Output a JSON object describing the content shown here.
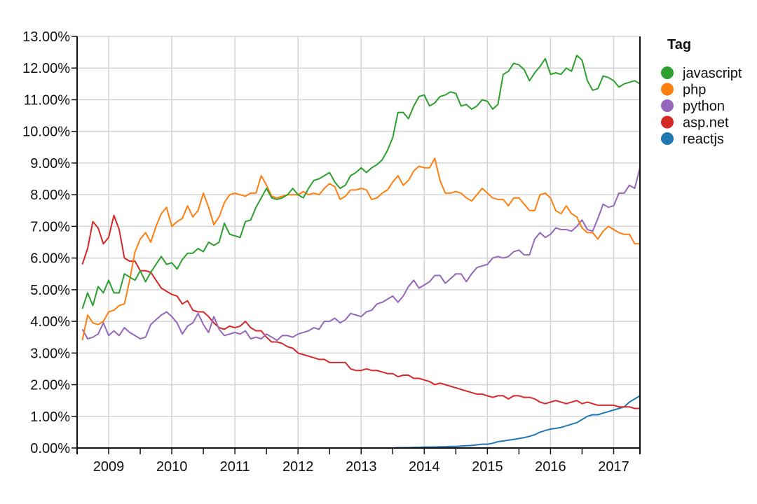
{
  "chart_data": {
    "type": "line",
    "title": "",
    "xlabel": "",
    "ylabel": "",
    "x_ticks": [
      "2009",
      "2010",
      "2011",
      "2012",
      "2013",
      "2014",
      "2015",
      "2016",
      "2017"
    ],
    "y_ticks": [
      "0.00%",
      "1.00%",
      "2.00%",
      "3.00%",
      "4.00%",
      "5.00%",
      "6.00%",
      "7.00%",
      "8.00%",
      "9.00%",
      "10.00%",
      "11.00%",
      "12.00%",
      "13.00%"
    ],
    "xlim": [
      "2008-07",
      "2017-06"
    ],
    "ylim": [
      0,
      13
    ],
    "y_unit": "%",
    "grid": true,
    "legend": {
      "title": "Tag",
      "position": "right"
    },
    "x": [
      "2008-08",
      "2008-09",
      "2008-10",
      "2008-11",
      "2008-12",
      "2009-01",
      "2009-02",
      "2009-03",
      "2009-04",
      "2009-05",
      "2009-06",
      "2009-07",
      "2009-08",
      "2009-09",
      "2009-10",
      "2009-11",
      "2009-12",
      "2010-01",
      "2010-02",
      "2010-03",
      "2010-04",
      "2010-05",
      "2010-06",
      "2010-07",
      "2010-08",
      "2010-09",
      "2010-10",
      "2010-11",
      "2010-12",
      "2011-01",
      "2011-02",
      "2011-03",
      "2011-04",
      "2011-05",
      "2011-06",
      "2011-07",
      "2011-08",
      "2011-09",
      "2011-10",
      "2011-11",
      "2011-12",
      "2012-01",
      "2012-02",
      "2012-03",
      "2012-04",
      "2012-05",
      "2012-06",
      "2012-07",
      "2012-08",
      "2012-09",
      "2012-10",
      "2012-11",
      "2012-12",
      "2013-01",
      "2013-02",
      "2013-03",
      "2013-04",
      "2013-05",
      "2013-06",
      "2013-07",
      "2013-08",
      "2013-09",
      "2013-10",
      "2013-11",
      "2013-12",
      "2014-01",
      "2014-02",
      "2014-03",
      "2014-04",
      "2014-05",
      "2014-06",
      "2014-07",
      "2014-08",
      "2014-09",
      "2014-10",
      "2014-11",
      "2014-12",
      "2015-01",
      "2015-02",
      "2015-03",
      "2015-04",
      "2015-05",
      "2015-06",
      "2015-07",
      "2015-08",
      "2015-09",
      "2015-10",
      "2015-11",
      "2015-12",
      "2016-01",
      "2016-02",
      "2016-03",
      "2016-04",
      "2016-05",
      "2016-06",
      "2016-07",
      "2016-08",
      "2016-09",
      "2016-10",
      "2016-11",
      "2016-12",
      "2017-01",
      "2017-02",
      "2017-03",
      "2017-04",
      "2017-05",
      "2017-06"
    ],
    "series": [
      {
        "name": "javascript",
        "color": "#2ca02c",
        "values": [
          4.4,
          4.9,
          4.5,
          5.1,
          4.9,
          5.3,
          4.9,
          4.9,
          5.5,
          5.4,
          5.3,
          5.6,
          5.25,
          5.55,
          5.8,
          6.05,
          5.8,
          5.85,
          5.65,
          5.95,
          6.15,
          6.15,
          6.3,
          6.2,
          6.5,
          6.4,
          6.5,
          7.1,
          6.75,
          6.7,
          6.65,
          7.15,
          7.2,
          7.6,
          7.9,
          8.2,
          7.9,
          7.85,
          7.9,
          8.0,
          8.2,
          8.0,
          7.9,
          8.2,
          8.45,
          8.5,
          8.6,
          8.7,
          8.4,
          8.2,
          8.3,
          8.6,
          8.7,
          8.85,
          8.7,
          8.85,
          8.95,
          9.1,
          9.4,
          9.8,
          10.6,
          10.6,
          10.4,
          10.8,
          11.1,
          11.15,
          10.8,
          10.9,
          11.1,
          11.15,
          11.25,
          11.2,
          10.8,
          10.85,
          10.7,
          10.8,
          11.0,
          10.95,
          10.7,
          10.85,
          11.8,
          11.9,
          12.15,
          12.1,
          11.95,
          11.6,
          11.85,
          12.05,
          12.3,
          11.8,
          11.85,
          11.8,
          12.0,
          11.9,
          12.4,
          12.25,
          11.6,
          11.3,
          11.35,
          11.75,
          11.7,
          11.6,
          11.4,
          11.5,
          11.55,
          11.6,
          11.5
        ]
      },
      {
        "name": "php",
        "color": "#ff7f0e",
        "values": [
          3.4,
          4.2,
          3.95,
          3.9,
          4.0,
          4.3,
          4.35,
          4.5,
          4.55,
          5.3,
          6.2,
          6.6,
          6.8,
          6.5,
          7.0,
          7.4,
          7.6,
          7.0,
          7.15,
          7.25,
          7.65,
          7.3,
          7.5,
          8.05,
          7.6,
          7.05,
          7.3,
          7.75,
          8.0,
          8.05,
          8.0,
          7.95,
          8.05,
          8.05,
          8.6,
          8.3,
          7.95,
          7.9,
          7.95,
          8.0,
          8.0,
          8.0,
          8.1,
          8.0,
          8.05,
          8.0,
          8.2,
          8.35,
          8.25,
          7.85,
          7.95,
          8.15,
          8.15,
          8.2,
          8.15,
          7.85,
          7.9,
          8.05,
          8.15,
          8.4,
          8.6,
          8.3,
          8.45,
          8.75,
          8.9,
          8.85,
          8.85,
          9.15,
          8.45,
          8.05,
          8.05,
          8.1,
          8.05,
          7.9,
          7.8,
          8.0,
          8.2,
          8.05,
          7.9,
          7.85,
          7.85,
          7.65,
          7.9,
          7.9,
          7.7,
          7.5,
          7.5,
          8.0,
          8.05,
          7.9,
          7.5,
          7.4,
          7.65,
          7.4,
          7.3,
          6.95,
          6.8,
          6.8,
          6.6,
          6.85,
          7.0,
          6.9,
          6.8,
          6.75,
          6.75,
          6.45,
          6.45
        ]
      },
      {
        "name": "python",
        "color": "#9467bd",
        "values": [
          3.75,
          3.45,
          3.5,
          3.6,
          3.95,
          3.55,
          3.7,
          3.55,
          3.8,
          3.65,
          3.55,
          3.45,
          3.5,
          3.9,
          4.05,
          4.2,
          4.3,
          4.15,
          3.95,
          3.6,
          3.85,
          3.95,
          4.25,
          3.9,
          3.65,
          4.15,
          3.75,
          3.55,
          3.6,
          3.65,
          3.6,
          3.7,
          3.45,
          3.5,
          3.45,
          3.6,
          3.5,
          3.4,
          3.55,
          3.55,
          3.5,
          3.6,
          3.65,
          3.7,
          3.8,
          3.75,
          4.0,
          4.0,
          4.1,
          3.95,
          4.05,
          4.25,
          4.2,
          4.15,
          4.3,
          4.35,
          4.55,
          4.6,
          4.7,
          4.8,
          4.6,
          4.8,
          5.1,
          5.3,
          5.05,
          5.15,
          5.25,
          5.45,
          5.45,
          5.2,
          5.35,
          5.5,
          5.5,
          5.25,
          5.5,
          5.7,
          5.75,
          5.8,
          6.0,
          6.05,
          6.0,
          6.05,
          6.2,
          6.25,
          6.1,
          6.1,
          6.6,
          6.8,
          6.65,
          6.75,
          6.95,
          6.9,
          6.9,
          6.85,
          7.0,
          7.2,
          6.9,
          6.85,
          7.25,
          7.7,
          7.6,
          7.65,
          8.05,
          8.05,
          8.3,
          8.2,
          8.85
        ]
      },
      {
        "name": "asp.net",
        "color": "#d62728",
        "values": [
          5.8,
          6.3,
          7.15,
          6.95,
          6.45,
          6.65,
          7.35,
          6.9,
          6.0,
          5.9,
          5.9,
          5.6,
          5.6,
          5.55,
          5.3,
          5.05,
          4.95,
          4.85,
          4.8,
          4.55,
          4.65,
          4.35,
          4.3,
          4.3,
          4.15,
          3.95,
          3.8,
          3.75,
          3.85,
          3.8,
          3.85,
          4.0,
          3.8,
          3.7,
          3.7,
          3.5,
          3.35,
          3.35,
          3.3,
          3.2,
          3.15,
          3.0,
          2.95,
          2.9,
          2.85,
          2.8,
          2.8,
          2.7,
          2.7,
          2.7,
          2.7,
          2.5,
          2.45,
          2.45,
          2.5,
          2.45,
          2.45,
          2.4,
          2.35,
          2.35,
          2.25,
          2.3,
          2.3,
          2.2,
          2.2,
          2.15,
          2.1,
          2.0,
          2.05,
          2.0,
          1.95,
          1.9,
          1.85,
          1.8,
          1.75,
          1.7,
          1.7,
          1.65,
          1.6,
          1.65,
          1.65,
          1.55,
          1.65,
          1.65,
          1.6,
          1.6,
          1.55,
          1.45,
          1.4,
          1.45,
          1.5,
          1.45,
          1.4,
          1.45,
          1.5,
          1.4,
          1.45,
          1.4,
          1.35,
          1.35,
          1.35,
          1.35,
          1.3,
          1.3,
          1.3,
          1.25,
          1.25
        ]
      },
      {
        "name": "reactjs",
        "color": "#1f77b4",
        "values": [
          0,
          0,
          0,
          0,
          0,
          0,
          0,
          0,
          0,
          0,
          0,
          0,
          0,
          0,
          0,
          0,
          0,
          0,
          0,
          0,
          0,
          0,
          0,
          0,
          0,
          0,
          0,
          0,
          0,
          0,
          0,
          0,
          0,
          0,
          0,
          0,
          0,
          0,
          0,
          0,
          0,
          0,
          0,
          0,
          0,
          0,
          0,
          0,
          0,
          0,
          0,
          0,
          0,
          0,
          0,
          0,
          0,
          0,
          0,
          0,
          0.01,
          0.01,
          0.01,
          0.02,
          0.02,
          0.03,
          0.03,
          0.03,
          0.04,
          0.04,
          0.05,
          0.05,
          0.06,
          0.07,
          0.08,
          0.1,
          0.12,
          0.12,
          0.15,
          0.2,
          0.22,
          0.25,
          0.27,
          0.3,
          0.33,
          0.37,
          0.42,
          0.5,
          0.55,
          0.6,
          0.62,
          0.65,
          0.7,
          0.75,
          0.8,
          0.9,
          1.0,
          1.05,
          1.05,
          1.1,
          1.15,
          1.2,
          1.25,
          1.3,
          1.45,
          1.55,
          1.65
        ]
      }
    ]
  }
}
